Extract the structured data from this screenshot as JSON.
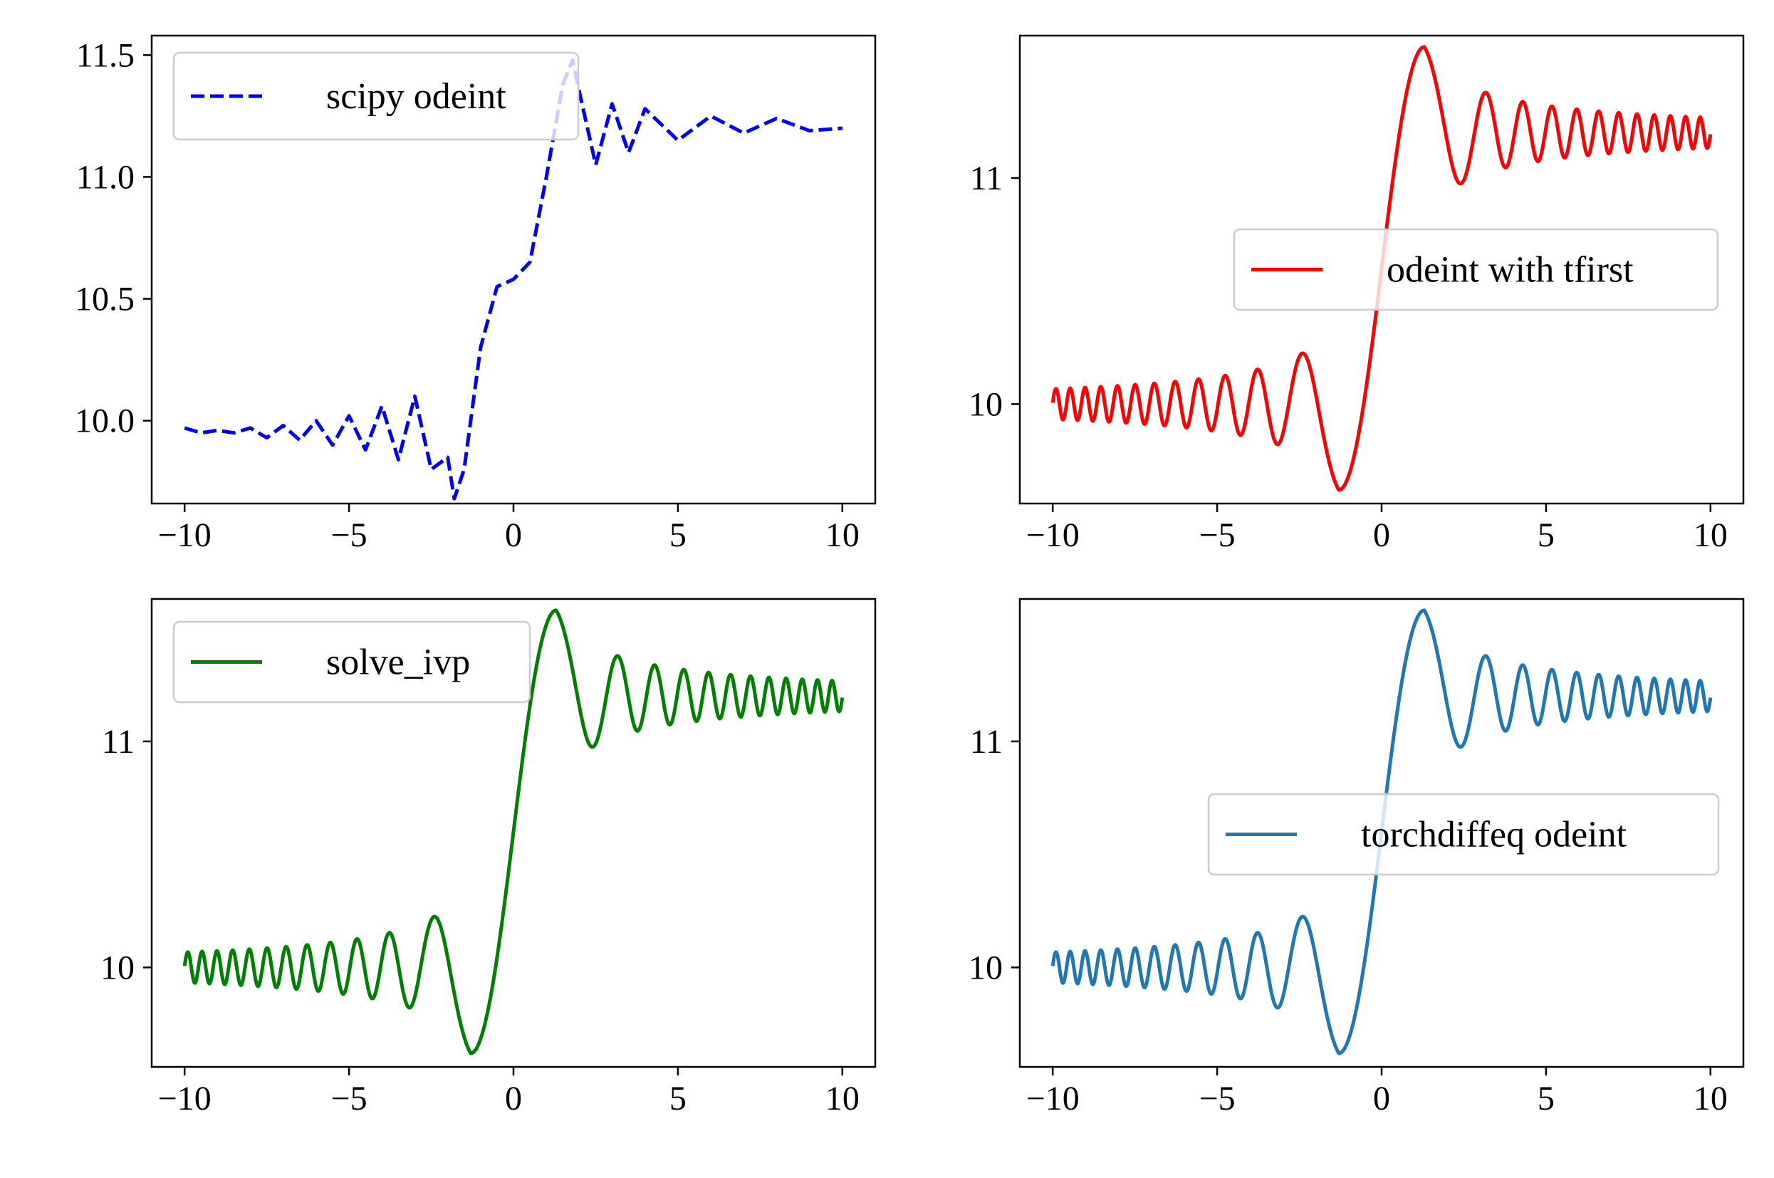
{
  "chart_data": [
    {
      "type": "line",
      "title": "",
      "xlabel": "",
      "ylabel": "",
      "xlim": [
        -11,
        11
      ],
      "ylim": [
        9.66,
        11.58
      ],
      "xticks": [
        -10,
        -5,
        0,
        5,
        10
      ],
      "xtick_labels": [
        "−10",
        "−5",
        "0",
        "5",
        "10"
      ],
      "yticks": [
        10.0,
        10.5,
        11.0,
        11.5
      ],
      "ytick_labels": [
        "10.0",
        "10.5",
        "11.0",
        "11.5"
      ],
      "grid": false,
      "legend_position": "top-left",
      "series": [
        {
          "name": "scipy odeint",
          "color": "#0000ff",
          "line_style": "dashed",
          "x": [
            -10,
            -9.5,
            -9,
            -8.5,
            -8,
            -7.5,
            -7,
            -6.5,
            -6,
            -5.5,
            -5,
            -4.5,
            -4,
            -3.5,
            -3,
            -2.5,
            -2,
            -1.8,
            -1.5,
            -1,
            -0.5,
            0,
            0.5,
            1,
            1.5,
            1.8,
            2,
            2.5,
            3,
            3.5,
            4,
            5,
            6,
            7,
            8,
            9,
            10
          ],
          "y": [
            9.97,
            9.95,
            9.96,
            9.95,
            9.97,
            9.93,
            9.98,
            9.92,
            10.0,
            9.9,
            10.02,
            9.88,
            10.06,
            9.84,
            10.1,
            9.8,
            9.85,
            9.68,
            9.8,
            10.3,
            10.55,
            10.58,
            10.65,
            11.0,
            11.38,
            11.48,
            11.35,
            11.05,
            11.3,
            11.1,
            11.28,
            11.15,
            11.25,
            11.18,
            11.24,
            11.19,
            11.2
          ]
        }
      ]
    },
    {
      "type": "line",
      "title": "",
      "xlabel": "",
      "ylabel": "",
      "xlim": [
        -11,
        11
      ],
      "ylim": [
        9.56,
        11.63
      ],
      "xticks": [
        -10,
        -5,
        0,
        5,
        10
      ],
      "xtick_labels": [
        "−10",
        "−5",
        "0",
        "5",
        "10"
      ],
      "yticks": [
        10,
        11
      ],
      "ytick_labels": [
        "10",
        "11"
      ],
      "grid": false,
      "legend_position": "center-right",
      "series": [
        {
          "name": "odeint with tfirst",
          "color": "#ff0000",
          "line_style": "solid",
          "model": "decaying oscillation",
          "baseline_before": 10.0,
          "baseline_after": 11.2,
          "min": [
            -1.3,
            9.62
          ],
          "max": [
            1.3,
            11.58
          ]
        }
      ]
    },
    {
      "type": "line",
      "title": "",
      "xlabel": "",
      "ylabel": "",
      "xlim": [
        -11,
        11
      ],
      "ylim": [
        9.56,
        11.63
      ],
      "xticks": [
        -10,
        -5,
        0,
        5,
        10
      ],
      "xtick_labels": [
        "−10",
        "−5",
        "0",
        "5",
        "10"
      ],
      "yticks": [
        10,
        11
      ],
      "ytick_labels": [
        "10",
        "11"
      ],
      "grid": false,
      "legend_position": "top-left",
      "series": [
        {
          "name": "solve_ivp",
          "color": "#008000",
          "line_style": "solid",
          "model": "decaying oscillation",
          "baseline_before": 10.0,
          "baseline_after": 11.2,
          "min": [
            -1.3,
            9.62
          ],
          "max": [
            1.3,
            11.58
          ]
        }
      ]
    },
    {
      "type": "line",
      "title": "",
      "xlabel": "",
      "ylabel": "",
      "xlim": [
        -11,
        11
      ],
      "ylim": [
        9.56,
        11.63
      ],
      "xticks": [
        -10,
        -5,
        0,
        5,
        10
      ],
      "xtick_labels": [
        "−10",
        "−5",
        "0",
        "5",
        "10"
      ],
      "yticks": [
        10,
        11
      ],
      "ytick_labels": [
        "10",
        "11"
      ],
      "grid": false,
      "legend_position": "center-right",
      "series": [
        {
          "name": "torchdiffeq odeint",
          "color": "#1f77b4",
          "line_style": "solid",
          "model": "decaying oscillation",
          "baseline_before": 10.0,
          "baseline_after": 11.2,
          "min": [
            -1.3,
            9.62
          ],
          "max": [
            1.3,
            11.58
          ]
        }
      ]
    }
  ]
}
